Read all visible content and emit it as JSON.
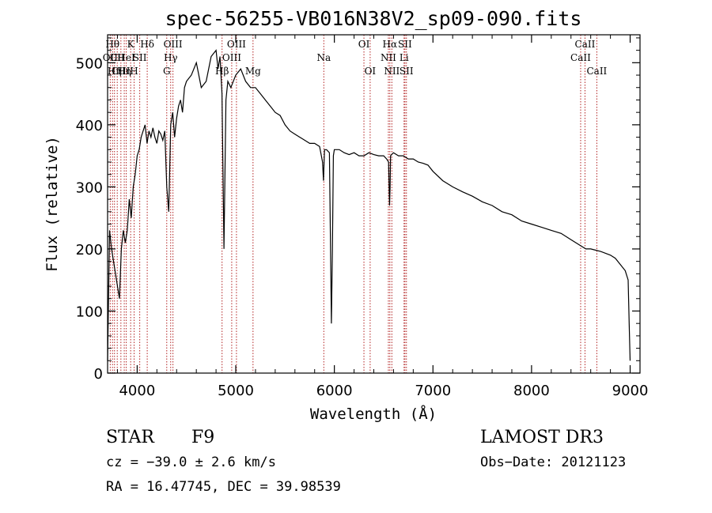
{
  "chart_data": {
    "type": "line",
    "title": "spec-56255-VB016N38V2_sp09-090.fits",
    "xlabel": "Wavelength (Å)",
    "ylabel": "Flux (relative)",
    "xlim": [
      3700,
      9100
    ],
    "ylim": [
      0,
      545
    ],
    "x_ticks": [
      4000,
      5000,
      6000,
      7000,
      8000,
      9000
    ],
    "y_ticks": [
      0,
      100,
      200,
      300,
      400,
      500
    ],
    "x_tick_labels": [
      "4000",
      "5000",
      "6000",
      "7000",
      "8000",
      "9000"
    ],
    "y_tick_labels": [
      "0",
      "100",
      "200",
      "300",
      "400",
      "500"
    ],
    "grid": false,
    "series": [
      {
        "name": "spectrum",
        "x": [
          3700,
          3720,
          3740,
          3760,
          3780,
          3800,
          3820,
          3840,
          3860,
          3880,
          3900,
          3920,
          3940,
          3960,
          3980,
          4000,
          4020,
          4040,
          4060,
          4080,
          4100,
          4120,
          4140,
          4160,
          4180,
          4200,
          4220,
          4240,
          4260,
          4280,
          4300,
          4320,
          4340,
          4360,
          4380,
          4400,
          4420,
          4440,
          4460,
          4480,
          4500,
          4550,
          4600,
          4650,
          4700,
          4750,
          4800,
          4820,
          4840,
          4860,
          4880,
          4900,
          4920,
          4950,
          5000,
          5050,
          5100,
          5150,
          5200,
          5250,
          5300,
          5350,
          5400,
          5450,
          5500,
          5550,
          5600,
          5650,
          5700,
          5750,
          5800,
          5850,
          5880,
          5890,
          5900,
          5920,
          5950,
          5970,
          5980,
          5990,
          6000,
          6050,
          6100,
          6150,
          6200,
          6250,
          6300,
          6350,
          6400,
          6450,
          6500,
          6530,
          6550,
          6560,
          6565,
          6570,
          6580,
          6600,
          6650,
          6700,
          6750,
          6800,
          6850,
          6900,
          6950,
          7000,
          7100,
          7200,
          7300,
          7400,
          7500,
          7600,
          7700,
          7800,
          7900,
          8000,
          8100,
          8200,
          8300,
          8400,
          8500,
          8550,
          8600,
          8650,
          8700,
          8750,
          8800,
          8850,
          8900,
          8950,
          8980,
          8990,
          9000
        ],
        "y": [
          20,
          230,
          200,
          180,
          160,
          140,
          120,
          200,
          230,
          210,
          230,
          280,
          250,
          300,
          320,
          350,
          360,
          380,
          390,
          400,
          370,
          390,
          380,
          395,
          380,
          370,
          390,
          385,
          375,
          390,
          300,
          260,
          400,
          420,
          380,
          410,
          430,
          440,
          420,
          460,
          470,
          480,
          500,
          460,
          470,
          510,
          520,
          490,
          510,
          450,
          200,
          440,
          470,
          460,
          480,
          490,
          470,
          460,
          460,
          450,
          440,
          430,
          420,
          415,
          400,
          390,
          385,
          380,
          375,
          370,
          370,
          365,
          340,
          310,
          360,
          360,
          355,
          80,
          200,
          350,
          360,
          360,
          355,
          352,
          355,
          350,
          350,
          355,
          352,
          350,
          350,
          345,
          340,
          270,
          300,
          350,
          352,
          355,
          350,
          350,
          345,
          345,
          340,
          338,
          335,
          325,
          310,
          300,
          292,
          285,
          276,
          270,
          260,
          255,
          245,
          240,
          235,
          230,
          225,
          215,
          205,
          200,
          200,
          198,
          196,
          193,
          190,
          185,
          175,
          165,
          150,
          80,
          20
        ]
      }
    ],
    "line_marks": [
      {
        "w": 3727,
        "row": 1,
        "label": "OII"
      },
      {
        "w": 3750,
        "row": 0,
        "label": "Hθ"
      },
      {
        "w": 3770,
        "row": 2,
        "label": "Hη"
      },
      {
        "w": 3798,
        "row": 1,
        "label": "CII"
      },
      {
        "w": 3835,
        "row": 2,
        "label": "CIII"
      },
      {
        "w": 3869,
        "row": 2,
        "label": "Hη"
      },
      {
        "w": 3889,
        "row": 1,
        "label": "HeI"
      },
      {
        "w": 3934,
        "row": 0,
        "label": "K"
      },
      {
        "w": 3969,
        "row": 2,
        "label": "H"
      },
      {
        "w": 4026,
        "row": 1,
        "label": "SII"
      },
      {
        "w": 4102,
        "row": 0,
        "label": "Hδ"
      },
      {
        "w": 4300,
        "row": 2,
        "label": "G"
      },
      {
        "w": 4340,
        "row": 1,
        "label": "Hγ"
      },
      {
        "w": 4363,
        "row": 0,
        "label": "OIII"
      },
      {
        "w": 4861,
        "row": 2,
        "label": "Hβ"
      },
      {
        "w": 4959,
        "row": 1,
        "label": "OIII"
      },
      {
        "w": 5007,
        "row": 0,
        "label": "OIII"
      },
      {
        "w": 5175,
        "row": 2,
        "label": "Mg"
      },
      {
        "w": 5893,
        "row": 1,
        "label": "Na"
      },
      {
        "w": 6300,
        "row": 0,
        "label": "OI"
      },
      {
        "w": 6363,
        "row": 2,
        "label": "OI"
      },
      {
        "w": 6548,
        "row": 1,
        "label": "NII"
      },
      {
        "w": 6563,
        "row": 0,
        "label": "Hα"
      },
      {
        "w": 6583,
        "row": 2,
        "label": "NII"
      },
      {
        "w": 6707,
        "row": 1,
        "label": "Li"
      },
      {
        "w": 6716,
        "row": 0,
        "label": "SII"
      },
      {
        "w": 6731,
        "row": 2,
        "label": "SII"
      },
      {
        "w": 8498,
        "row": 1,
        "label": "CaII"
      },
      {
        "w": 8542,
        "row": 0,
        "label": "CaII"
      },
      {
        "w": 8662,
        "row": 2,
        "label": "CaII"
      }
    ],
    "annotations": {
      "class_label": "STAR",
      "subclass": "F9",
      "survey": "LAMOST DR3",
      "cz": "cz = −39.0 ± 2.6 km/s",
      "obs_date": "Obs−Date: 20121123",
      "coords": "RA =  16.47745, DEC =  39.98539"
    },
    "colors": {
      "line_marks": "#b22222",
      "spectrum": "#000000",
      "axes": "#000000"
    }
  }
}
